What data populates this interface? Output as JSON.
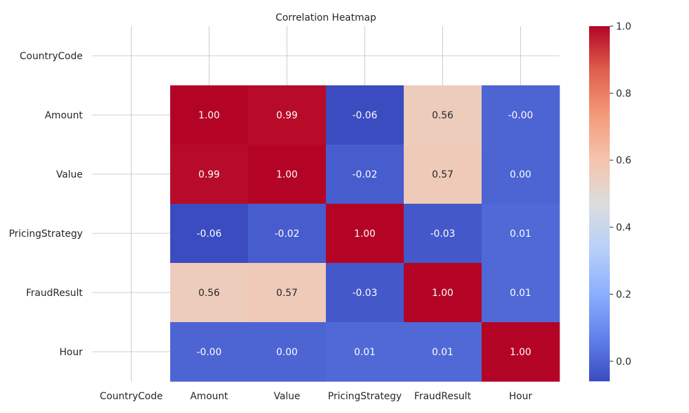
{
  "chart_data": {
    "type": "heatmap",
    "title": "Correlation Heatmap",
    "x_labels": [
      "CountryCode",
      "Amount",
      "Value",
      "PricingStrategy",
      "FraudResult",
      "Hour"
    ],
    "y_labels": [
      "CountryCode",
      "Amount",
      "Value",
      "PricingStrategy",
      "FraudResult",
      "Hour"
    ],
    "values": [
      [
        null,
        null,
        null,
        null,
        null,
        null
      ],
      [
        null,
        1.0,
        0.99,
        -0.06,
        0.56,
        -0.0
      ],
      [
        null,
        0.99,
        1.0,
        -0.02,
        0.57,
        0.0
      ],
      [
        null,
        -0.06,
        -0.02,
        1.0,
        -0.03,
        0.01
      ],
      [
        null,
        0.56,
        0.57,
        -0.03,
        1.0,
        0.01
      ],
      [
        null,
        -0.0,
        0.0,
        0.01,
        0.01,
        1.0
      ]
    ],
    "cell_labels": [
      [
        "",
        "",
        "",
        "",
        "",
        ""
      ],
      [
        "",
        "1.00",
        "0.99",
        "-0.06",
        "0.56",
        "-0.00"
      ],
      [
        "",
        "0.99",
        "1.00",
        "-0.02",
        "0.57",
        "0.00"
      ],
      [
        "",
        "-0.06",
        "-0.02",
        "1.00",
        "-0.03",
        "0.01"
      ],
      [
        "",
        "0.56",
        "0.57",
        "-0.03",
        "1.00",
        "0.01"
      ],
      [
        "",
        "-0.00",
        "0.00",
        "0.01",
        "0.01",
        "1.00"
      ]
    ],
    "colormap": "coolwarm",
    "vmin": -0.06,
    "vmax": 1.0,
    "colorbar_ticks": [
      "0.0",
      "0.2",
      "0.4",
      "0.6",
      "0.8",
      "1.0"
    ],
    "grid": true
  }
}
